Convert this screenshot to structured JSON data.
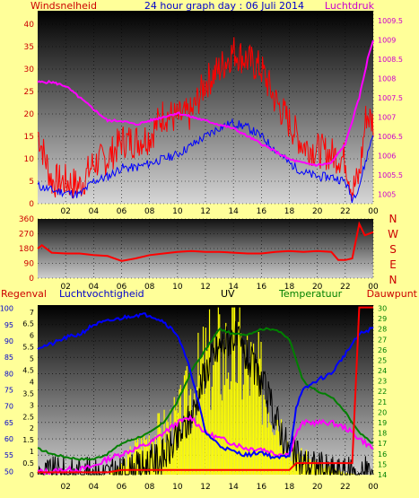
{
  "chart_data": [
    {
      "type": "line",
      "title": "24 hour graph day : 06 Juli 2014",
      "y_left_label": "Windsnelheid",
      "y_right_label": "Luchtdruk",
      "x_ticks": [
        "02",
        "04",
        "06",
        "08",
        "10",
        "12",
        "14",
        "16",
        "18",
        "20",
        "22",
        "00"
      ],
      "x_hours": [
        2,
        4,
        6,
        8,
        10,
        12,
        14,
        16,
        18,
        20,
        22,
        24
      ],
      "y_left_ticks": [
        0,
        5,
        10,
        15,
        20,
        25,
        30,
        35,
        40
      ],
      "y_left_range": [
        0,
        43
      ],
      "y_right_ticks": [
        "1005",
        "1005.5",
        "1006",
        "1006.5",
        "1007",
        "1007.5",
        "1008",
        "1008.5",
        "1009",
        "1009.5"
      ],
      "y_right_values": [
        1005,
        1005.5,
        1006,
        1006.5,
        1007,
        1007.5,
        1008,
        1008.5,
        1009,
        1009.5
      ],
      "y_right_range": [
        1004.75,
        1009.75
      ],
      "colors": {
        "gust": "#ff0000",
        "avg": "#0000ff",
        "pressure": "#ff00ff",
        "left_axis": "#cc0000",
        "right_axis": "#cc00cc"
      },
      "series": [
        {
          "key": "gust",
          "points": [
            [
              0,
              16
            ],
            [
              1,
              5
            ],
            [
              2,
              5
            ],
            [
              3,
              4
            ],
            [
              4,
              9
            ],
            [
              5,
              10
            ],
            [
              6,
              14
            ],
            [
              7,
              14
            ],
            [
              8,
              15
            ],
            [
              9,
              20
            ],
            [
              10,
              19
            ],
            [
              11,
              20
            ],
            [
              12,
              27
            ],
            [
              13,
              30
            ],
            [
              14,
              34
            ],
            [
              15,
              32
            ],
            [
              16,
              30
            ],
            [
              17,
              23
            ],
            [
              18,
              18
            ],
            [
              19,
              13
            ],
            [
              20,
              12
            ],
            [
              21,
              11
            ],
            [
              22,
              10
            ],
            [
              22.5,
              3
            ],
            [
              23,
              6
            ],
            [
              23.5,
              20
            ],
            [
              24,
              18
            ]
          ]
        },
        {
          "key": "avg",
          "points": [
            [
              0,
              4
            ],
            [
              1,
              3
            ],
            [
              2,
              2.5
            ],
            [
              3,
              2
            ],
            [
              4,
              5
            ],
            [
              5,
              6
            ],
            [
              6,
              8
            ],
            [
              7,
              8
            ],
            [
              8,
              9
            ],
            [
              9,
              10
            ],
            [
              10,
              11
            ],
            [
              11,
              13
            ],
            [
              12,
              15
            ],
            [
              13,
              17
            ],
            [
              14,
              18
            ],
            [
              15,
              17
            ],
            [
              16,
              15
            ],
            [
              17,
              12
            ],
            [
              18,
              9
            ],
            [
              19,
              7
            ],
            [
              20,
              6
            ],
            [
              21,
              6
            ],
            [
              22,
              5
            ],
            [
              22.5,
              1
            ],
            [
              23,
              4
            ],
            [
              23.5,
              10
            ],
            [
              24,
              16
            ]
          ]
        },
        {
          "key": "pressure",
          "points": [
            [
              0,
              1007.9
            ],
            [
              1,
              1007.9
            ],
            [
              2,
              1007.8
            ],
            [
              3,
              1007.5
            ],
            [
              4,
              1007.2
            ],
            [
              5,
              1006.9
            ],
            [
              6,
              1006.9
            ],
            [
              7,
              1006.8
            ],
            [
              8,
              1006.9
            ],
            [
              9,
              1007.0
            ],
            [
              10,
              1007.1
            ],
            [
              11,
              1007.0
            ],
            [
              12,
              1006.9
            ],
            [
              13,
              1006.8
            ],
            [
              14,
              1006.7
            ],
            [
              15,
              1006.5
            ],
            [
              16,
              1006.3
            ],
            [
              17,
              1006.1
            ],
            [
              18,
              1005.9
            ],
            [
              19,
              1005.8
            ],
            [
              20,
              1005.75
            ],
            [
              21,
              1005.8
            ],
            [
              22,
              1006.3
            ],
            [
              23,
              1007.5
            ],
            [
              23.6,
              1008.5
            ],
            [
              24,
              1009
            ]
          ]
        }
      ]
    },
    {
      "type": "line",
      "y_right_labels": [
        "N",
        "W",
        "S",
        "E",
        "N"
      ],
      "y_ticks": [
        0,
        90,
        180,
        270,
        360
      ],
      "y_range": [
        0,
        360
      ],
      "colors": {
        "direction": "#ff0000"
      },
      "series": [
        {
          "key": "direction",
          "points": [
            [
              0,
              180
            ],
            [
              0.3,
              200
            ],
            [
              1,
              155
            ],
            [
              2,
              150
            ],
            [
              3,
              150
            ],
            [
              4,
              140
            ],
            [
              5,
              135
            ],
            [
              6,
              105
            ],
            [
              7,
              120
            ],
            [
              8,
              140
            ],
            [
              9,
              150
            ],
            [
              10,
              160
            ],
            [
              11,
              165
            ],
            [
              12,
              160
            ],
            [
              13,
              160
            ],
            [
              14,
              155
            ],
            [
              15,
              150
            ],
            [
              16,
              150
            ],
            [
              17,
              160
            ],
            [
              18,
              165
            ],
            [
              19,
              160
            ],
            [
              20,
              165
            ],
            [
              21,
              160
            ],
            [
              21.5,
              110
            ],
            [
              22,
              110
            ],
            [
              22.5,
              120
            ],
            [
              23,
              330
            ],
            [
              23.4,
              260
            ],
            [
              24,
              280
            ]
          ]
        }
      ]
    },
    {
      "type": "line",
      "labels": {
        "regen": "Regenval",
        "humidity": "Luchtvochtigheid",
        "uv": "UV",
        "temp": "Temperatuur",
        "dew": "Dauwpunt"
      },
      "colors": {
        "regen": "#ff0000",
        "humidity": "#0000ff",
        "uv": "#ffff00",
        "temp": "#008000",
        "dew": "#ff00ff",
        "solar": "#000000",
        "regen_label": "#cc0000",
        "humidity_label": "#0000cc",
        "uv_label": "#000000",
        "temp_label": "#008000",
        "dew_label": "#cc0000"
      },
      "humidity_ticks": [
        50,
        55,
        60,
        65,
        70,
        75,
        80,
        85,
        90,
        95,
        100
      ],
      "humidity_range": [
        49,
        101
      ],
      "uv_ticks": [
        0,
        0.5,
        1,
        1.5,
        2,
        2.5,
        3,
        3.5,
        4,
        4.5,
        5,
        5.5,
        6,
        6.5,
        7
      ],
      "uv_range": [
        0,
        7.3
      ],
      "temp_ticks": [
        14,
        15,
        16,
        17,
        18,
        19,
        20,
        21,
        22,
        23,
        24,
        25,
        26,
        27,
        28,
        29,
        30
      ],
      "temp_range": [
        14,
        30.3
      ],
      "series": [
        {
          "key": "humidity",
          "points": [
            [
              0,
              88
            ],
            [
              1,
              89
            ],
            [
              2,
              91
            ],
            [
              3,
              92
            ],
            [
              4,
              95
            ],
            [
              5,
              96
            ],
            [
              6,
              97
            ],
            [
              7,
              98
            ],
            [
              8,
              98
            ],
            [
              9,
              96
            ],
            [
              10,
              92
            ],
            [
              11,
              80
            ],
            [
              12,
              62
            ],
            [
              13,
              58
            ],
            [
              14,
              56
            ],
            [
              15,
              55
            ],
            [
              16,
              56
            ],
            [
              17,
              54
            ],
            [
              18,
              55
            ],
            [
              18.5,
              70
            ],
            [
              19,
              75
            ],
            [
              20,
              78
            ],
            [
              21,
              80
            ],
            [
              22,
              86
            ],
            [
              23,
              92
            ],
            [
              24,
              94
            ]
          ]
        },
        {
          "key": "temp",
          "points": [
            [
              0,
              16.5
            ],
            [
              1,
              16
            ],
            [
              2,
              15.7
            ],
            [
              3,
              15.5
            ],
            [
              4,
              15.5
            ],
            [
              5,
              16
            ],
            [
              6,
              17
            ],
            [
              7,
              17.5
            ],
            [
              8,
              18
            ],
            [
              9,
              19
            ],
            [
              10,
              21
            ],
            [
              11,
              24
            ],
            [
              12,
              26
            ],
            [
              13,
              28
            ],
            [
              14,
              27.5
            ],
            [
              15,
              27.5
            ],
            [
              16,
              28
            ],
            [
              17,
              28
            ],
            [
              18,
              27
            ],
            [
              19,
              23
            ],
            [
              20,
              22
            ],
            [
              21,
              21.5
            ],
            [
              22,
              20
            ],
            [
              23,
              18
            ],
            [
              24,
              17
            ]
          ]
        },
        {
          "key": "dew",
          "points": [
            [
              0,
              14.3
            ],
            [
              1,
              14.3
            ],
            [
              2,
              14.5
            ],
            [
              3,
              14.5
            ],
            [
              4,
              14.8
            ],
            [
              5,
              15.5
            ],
            [
              6,
              16
            ],
            [
              7,
              16.5
            ],
            [
              8,
              17
            ],
            [
              9,
              18
            ],
            [
              10,
              19
            ],
            [
              11,
              19.5
            ],
            [
              12,
              18
            ],
            [
              13,
              17.5
            ],
            [
              14,
              17
            ],
            [
              15,
              16.5
            ],
            [
              16,
              16.5
            ],
            [
              17,
              16
            ],
            [
              18,
              16
            ],
            [
              18.5,
              18
            ],
            [
              19,
              19
            ],
            [
              20,
              19
            ],
            [
              21,
              19
            ],
            [
              22,
              18.5
            ],
            [
              23,
              17.5
            ],
            [
              24,
              16.5
            ]
          ]
        },
        {
          "key": "regen",
          "points": [
            [
              0,
              0.1
            ],
            [
              1,
              0.1
            ],
            [
              5,
              0.1
            ],
            [
              6,
              0.2
            ],
            [
              7,
              0.2
            ],
            [
              8,
              0.2
            ],
            [
              10,
              0.2
            ],
            [
              12,
              0.2
            ],
            [
              14,
              0.2
            ],
            [
              16,
              0.2
            ],
            [
              18,
              0.2
            ],
            [
              18.5,
              0.5
            ],
            [
              20,
              0.5
            ],
            [
              21.5,
              0.5
            ],
            [
              22.5,
              0.5
            ],
            [
              23,
              7.2
            ],
            [
              24,
              7.2
            ]
          ]
        },
        {
          "key": "solar",
          "points": [
            [
              0,
              0
            ],
            [
              5.8,
              0
            ],
            [
              6.5,
              0.1
            ],
            [
              7.5,
              0.3
            ],
            [
              8,
              0.5
            ],
            [
              9,
              0.8
            ],
            [
              10,
              1.5
            ],
            [
              11,
              2.5
            ],
            [
              12,
              4.5
            ],
            [
              13,
              5.5
            ],
            [
              14,
              6
            ],
            [
              15,
              5
            ],
            [
              16,
              4
            ],
            [
              17,
              2.5
            ],
            [
              18,
              1
            ],
            [
              19,
              0.5
            ],
            [
              20,
              0.3
            ],
            [
              21,
              0.1
            ],
            [
              22,
              0
            ],
            [
              24,
              0
            ]
          ]
        },
        {
          "key": "uv",
          "points": [
            [
              0,
              0
            ],
            [
              5,
              0
            ],
            [
              6,
              0.5
            ],
            [
              7,
              1.5
            ],
            [
              8,
              2
            ],
            [
              9,
              2.5
            ],
            [
              10,
              3
            ],
            [
              11,
              4.5
            ],
            [
              12,
              6
            ],
            [
              13,
              6.5
            ],
            [
              14,
              6.8
            ],
            [
              15,
              6
            ],
            [
              16,
              5
            ],
            [
              17,
              3.5
            ],
            [
              18,
              1.5
            ],
            [
              19,
              1
            ],
            [
              20,
              0.5
            ],
            [
              21,
              0.3
            ],
            [
              22,
              0.1
            ],
            [
              23,
              0
            ],
            [
              24,
              0
            ]
          ]
        }
      ]
    }
  ]
}
